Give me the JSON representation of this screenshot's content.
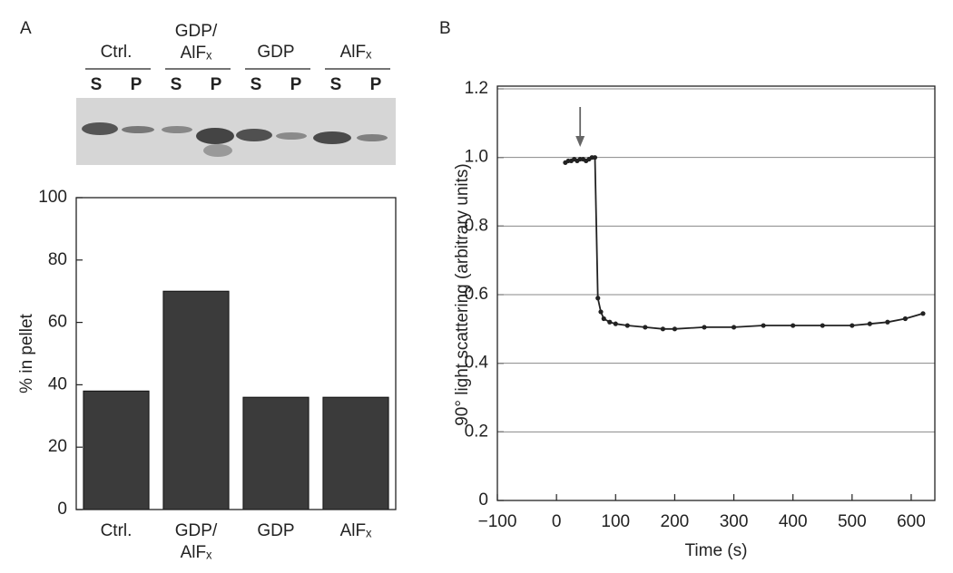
{
  "chart_data": [
    {
      "type": "bar",
      "panel_label": "A",
      "gel": {
        "groups": [
          "Ctrl.",
          "GDP/AlFₓ",
          "GDP",
          "AlFₓ"
        ],
        "lanes": [
          "S",
          "P",
          "S",
          "P",
          "S",
          "P",
          "S",
          "P"
        ]
      },
      "categories": [
        "Ctrl.",
        "GDP/AlFₓ",
        "GDP",
        "AlFₓ"
      ],
      "values": [
        38,
        70,
        36,
        36
      ],
      "color": "#3b3b3b",
      "y_label": "% in pellet",
      "ylim": [
        0,
        100
      ],
      "yticks": [
        0,
        20,
        40,
        60,
        80,
        100
      ],
      "grid": false
    },
    {
      "type": "line",
      "panel_label": "B",
      "x_label": "Time (s)",
      "y_label": "90° light scattering (arbitrary units)",
      "x": [
        15,
        20,
        25,
        30,
        35,
        40,
        45,
        50,
        55,
        60,
        65,
        70,
        75,
        80,
        90,
        100,
        120,
        150,
        180,
        200,
        250,
        300,
        350,
        400,
        450,
        500,
        530,
        560,
        590,
        620
      ],
      "series": [
        {
          "name": "light scattering",
          "color": "#222222",
          "values": [
            0.985,
            0.99,
            0.99,
            0.995,
            0.99,
            0.995,
            0.995,
            0.99,
            0.995,
            1.0,
            1.0,
            0.59,
            0.55,
            0.53,
            0.52,
            0.515,
            0.51,
            0.505,
            0.5,
            0.5,
            0.505,
            0.505,
            0.51,
            0.51,
            0.51,
            0.51,
            0.515,
            0.52,
            0.53,
            0.545
          ]
        }
      ],
      "arrow_x": 40,
      "xlim": [
        -100,
        640
      ],
      "xticks": [
        {
          "value": -100,
          "label": "−100"
        },
        0,
        100,
        200,
        300,
        400,
        500,
        600
      ],
      "ylim": [
        0,
        1.2
      ],
      "yticks": [
        0,
        0.2,
        0.4,
        0.6,
        0.8,
        {
          "value": 1,
          "label": "1.0"
        },
        1.2
      ],
      "grid": true
    }
  ]
}
